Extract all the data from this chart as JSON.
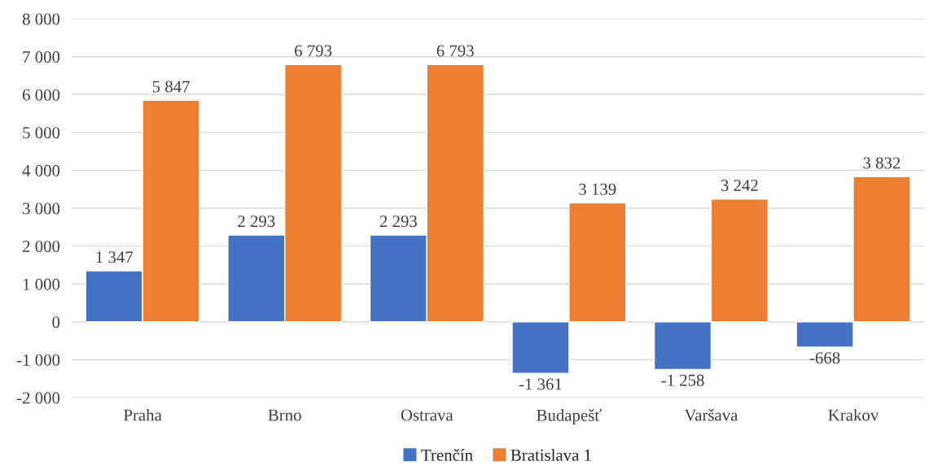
{
  "chart_data": {
    "type": "bar",
    "categories": [
      "Praha",
      "Brno",
      "Ostrava",
      "Budapešť",
      "Varšava",
      "Krakov"
    ],
    "series": [
      {
        "name": "Trenčín",
        "color": "#4472c4",
        "values": [
          1347,
          2293,
          2293,
          -1361,
          -1258,
          -668
        ],
        "value_labels": [
          "1 347",
          "2 293",
          "2 293",
          "-1 361",
          "-1 258",
          "-668"
        ]
      },
      {
        "name": "Bratislava 1",
        "color": "#ed7d31",
        "values": [
          5847,
          6793,
          6793,
          3139,
          3242,
          3832
        ],
        "value_labels": [
          "5 847",
          "6 793",
          "6 793",
          "3 139",
          "3 242",
          "3 832"
        ]
      }
    ],
    "ylim": [
      -2000,
      8000
    ],
    "yticks": [
      {
        "value": -2000,
        "label": "-2 000"
      },
      {
        "value": -1000,
        "label": "-1 000"
      },
      0,
      {
        "value": 1000,
        "label": "1 000"
      },
      {
        "value": 2000,
        "label": "2 000"
      },
      {
        "value": 3000,
        "label": "3 000"
      },
      {
        "value": 4000,
        "label": "4 000"
      },
      {
        "value": 5000,
        "label": "5 000"
      },
      {
        "value": 6000,
        "label": "6 000"
      },
      {
        "value": 7000,
        "label": "7 000"
      },
      {
        "value": 8000,
        "label": "8 000"
      }
    ],
    "grid": "y",
    "legend": "bottom"
  }
}
